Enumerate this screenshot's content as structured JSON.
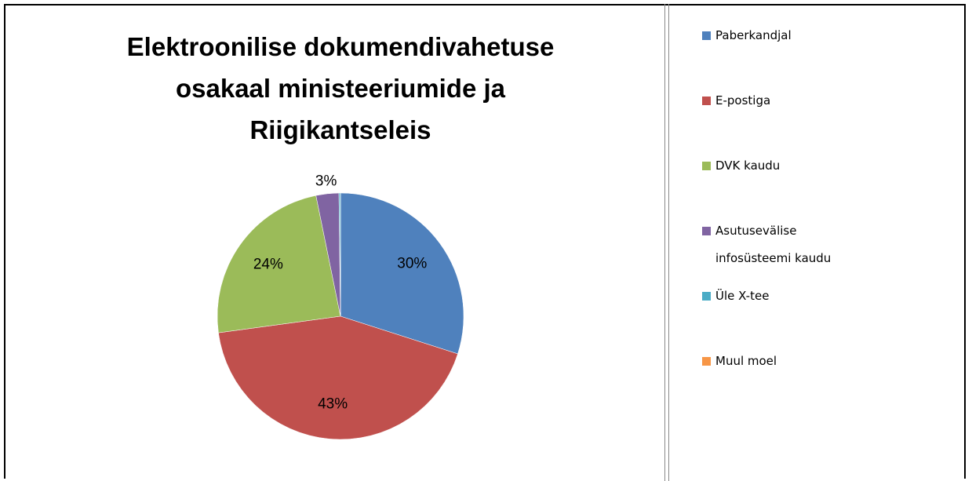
{
  "chart_data": {
    "type": "pie",
    "title": "Elektroonilise dokumendivahetuse osakaal ministeeriumide ja Riigikantseleis",
    "categories": [
      "Paberkandjal",
      "E-postiga",
      "DVK kaudu",
      "Asutusevälise infosüsteemi kaudu",
      "Üle X-tee",
      "Muul moel"
    ],
    "values": [
      30,
      43,
      24,
      3,
      0.2,
      0
    ],
    "value_labels": [
      "30%",
      "43%",
      "24%",
      "3%",
      null,
      null
    ],
    "colors": [
      "#4f81bd",
      "#c0504d",
      "#9bbb59",
      "#8064a2",
      "#4bacc6",
      "#f79646"
    ],
    "legend": "right"
  }
}
